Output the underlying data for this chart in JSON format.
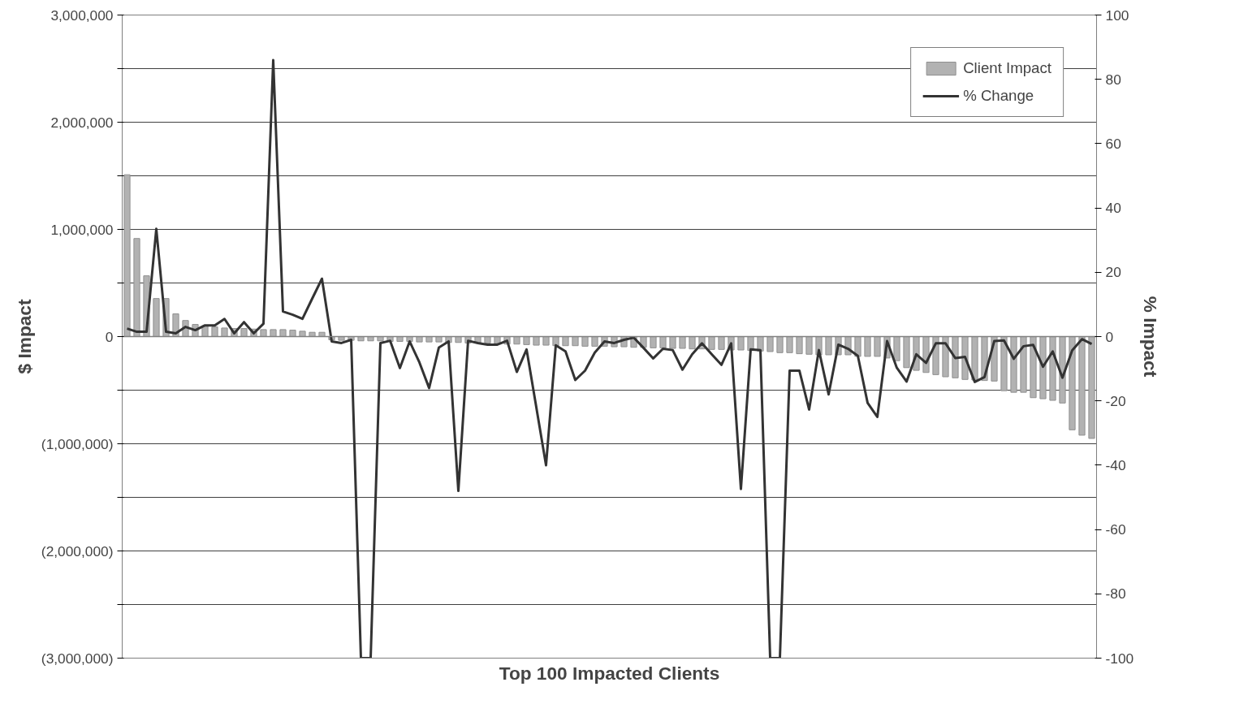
{
  "chart_data": {
    "type": "bar",
    "xlabel": "Top 100 Impacted Clients",
    "ylabel": "$ Impact",
    "y2label": "% Impact",
    "categories": [
      null,
      null,
      null,
      null,
      null,
      null,
      null,
      null,
      null,
      null,
      null,
      null,
      null,
      null,
      null,
      null,
      null,
      null,
      null,
      null,
      null,
      null,
      null,
      null,
      null,
      null,
      null,
      null,
      null,
      null,
      null,
      null,
      null,
      null,
      null,
      null,
      null,
      null,
      null,
      null,
      null,
      null,
      null,
      null,
      null,
      null,
      null,
      null,
      null,
      null,
      null,
      null,
      null,
      null,
      null,
      null,
      null,
      null,
      null,
      null,
      null,
      null,
      null,
      null,
      null,
      null,
      null,
      null,
      null,
      null,
      null,
      null,
      null,
      null,
      null,
      null,
      null,
      null,
      null,
      null,
      null,
      null,
      null,
      null,
      null,
      null,
      null,
      null,
      null,
      null,
      null,
      null,
      null,
      null,
      null,
      null,
      null,
      null,
      null,
      null
    ],
    "series": [
      {
        "name": "Client Impact",
        "color": "#b2b2b2",
        "values": [
          1510000,
          915000,
          567000,
          355000,
          355000,
          212000,
          150000,
          113000,
          100000,
          90000,
          80000,
          75000,
          75000,
          70000,
          65000,
          65000,
          65000,
          60000,
          50000,
          40000,
          40000,
          -30000,
          -35000,
          -35000,
          -40000,
          -40000,
          -40000,
          -45000,
          -45000,
          -45000,
          -50000,
          -50000,
          -50000,
          -55000,
          -55000,
          -60000,
          -60000,
          -60000,
          -65000,
          -70000,
          -70000,
          -75000,
          -80000,
          -80000,
          -85000,
          -85000,
          -85000,
          -90000,
          -90000,
          -90000,
          -95000,
          -95000,
          -100000,
          -100000,
          -105000,
          -105000,
          -110000,
          -110000,
          -115000,
          -115000,
          -120000,
          -120000,
          -125000,
          -125000,
          -130000,
          -135000,
          -140000,
          -150000,
          -150000,
          -160000,
          -165000,
          -170000,
          -170000,
          -170000,
          -170000,
          -185000,
          -185000,
          -185000,
          -200000,
          -225000,
          -290000,
          -315000,
          -335000,
          -355000,
          -375000,
          -385000,
          -400000,
          -405000,
          -410000,
          -415000,
          -505000,
          -520000,
          -520000,
          -570000,
          -580000,
          -595000,
          -620000,
          -870000,
          -920000,
          -950000
        ]
      },
      {
        "name": "% Change",
        "type": "line",
        "axis": "y2",
        "color": "#333333",
        "values": [
          2.5,
          1.5,
          1.5,
          33.5,
          1.5,
          1,
          3,
          2,
          3.5,
          3.5,
          5.5,
          1,
          4.5,
          1,
          4,
          86,
          7.8,
          6.8,
          5.5,
          11.8,
          18,
          -1.5,
          -2,
          -1,
          -100,
          -100,
          -2,
          -1.3,
          -9.8,
          -1.5,
          -8,
          -16,
          -3.4,
          -1.5,
          -48,
          -1.3,
          -2,
          -2.5,
          -2.5,
          -1.3,
          -11,
          -4,
          -22,
          -40,
          -2.7,
          -4.6,
          -13.5,
          -10.6,
          -5,
          -1.5,
          -2,
          -1,
          -0.3,
          -3.5,
          -6.8,
          -3.8,
          -4.2,
          -10.3,
          -5.5,
          -2.1,
          -5.5,
          -8.8,
          -2.1,
          -47.4,
          -4,
          -4.2,
          -100,
          -100,
          -10.6,
          -10.6,
          -22.7,
          -4.2,
          -18,
          -2.5,
          -3.8,
          -6,
          -20.6,
          -25,
          -1.4,
          -9.7,
          -14,
          -5.5,
          -8.2,
          -2.1,
          -2.1,
          -6.7,
          -6.3,
          -14.1,
          -12.6,
          -1.4,
          -1.2,
          -6.9,
          -3,
          -2.6,
          -9.4,
          -4.6,
          -12.8,
          -4.3,
          -0.8,
          -2.3
        ]
      }
    ],
    "ylim": [
      -3000000,
      3000000
    ],
    "yticks": [
      {
        "value": -3000000,
        "label": "(3,000,000)"
      },
      {
        "value": -2500000,
        "label": null
      },
      {
        "value": -2000000,
        "label": "(2,000,000)"
      },
      {
        "value": -1500000,
        "label": null
      },
      {
        "value": -1000000,
        "label": "(1,000,000)"
      },
      {
        "value": -500000,
        "label": null
      },
      0,
      {
        "value": 500000,
        "label": null
      },
      {
        "value": 1000000,
        "label": "1,000,000"
      },
      {
        "value": 1500000,
        "label": null
      },
      {
        "value": 2000000,
        "label": "2,000,000"
      },
      {
        "value": 2500000,
        "label": null
      },
      {
        "value": 3000000,
        "label": "3,000,000"
      }
    ],
    "y2lim": [
      -100,
      100
    ],
    "y2ticks": [
      -100,
      -80,
      -60,
      -40,
      -20,
      0,
      20,
      40,
      60,
      80,
      100
    ],
    "tick_labels": "y",
    "grid": "y",
    "legend": "top right"
  }
}
